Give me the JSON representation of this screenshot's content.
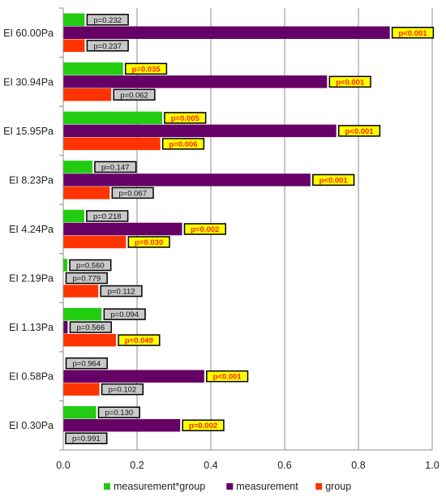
{
  "chart_data": {
    "type": "bar",
    "orientation": "horizontal",
    "xlim": [
      0,
      1.0
    ],
    "x_ticks": [
      "0.0",
      "0.2",
      "0.4",
      "0.6",
      "0.8",
      "1.0"
    ],
    "grid": "vertical",
    "legend_position": "bottom",
    "categories": [
      "EI 60.00Pa",
      "EI 30.94Pa",
      "EI 15.95Pa",
      "EI 8.23Pa",
      "EI 4.24Pa",
      "EI 2.19Pa",
      "EI 1.13Pa",
      "EI 0.58Pa",
      "EI 0.30Pa"
    ],
    "series": [
      {
        "name": "measurement*group",
        "color": "#22cc11",
        "values": [
          0.058,
          0.162,
          0.268,
          0.079,
          0.057,
          0.011,
          0.104,
          0.001,
          0.089
        ],
        "labels": [
          "p=0.232",
          "p=0.035",
          "p=0.005",
          "p=0.147",
          "p=0.218",
          "p=0.560",
          "p=0.094",
          "p=0.964",
          "p=0.130"
        ],
        "significant": [
          false,
          true,
          true,
          false,
          false,
          false,
          false,
          false,
          false
        ]
      },
      {
        "name": "measurement",
        "color": "#660066",
        "values": [
          0.885,
          0.715,
          0.74,
          0.67,
          0.322,
          0.001,
          0.012,
          0.382,
          0.317
        ],
        "labels": [
          "p<0.001",
          "p<0.001",
          "p<0.001",
          "p<0.001",
          "p=0.002",
          "p=0.779",
          "p=0.566",
          "p<0.001",
          "p=0.002"
        ],
        "significant": [
          true,
          true,
          true,
          true,
          true,
          false,
          false,
          true,
          true
        ]
      },
      {
        "name": "group",
        "color": "#ff3300",
        "values": [
          0.058,
          0.13,
          0.263,
          0.126,
          0.17,
          0.095,
          0.143,
          0.098,
          0.0
        ],
        "labels": [
          "p=0.237",
          "p=0.062",
          "p=0.006",
          "p=0.067",
          "p=0.030",
          "p=0.112",
          "p=0.049",
          "p=0.102",
          "p=0.991"
        ],
        "significant": [
          false,
          false,
          true,
          false,
          true,
          false,
          true,
          false,
          false
        ]
      }
    ]
  }
}
